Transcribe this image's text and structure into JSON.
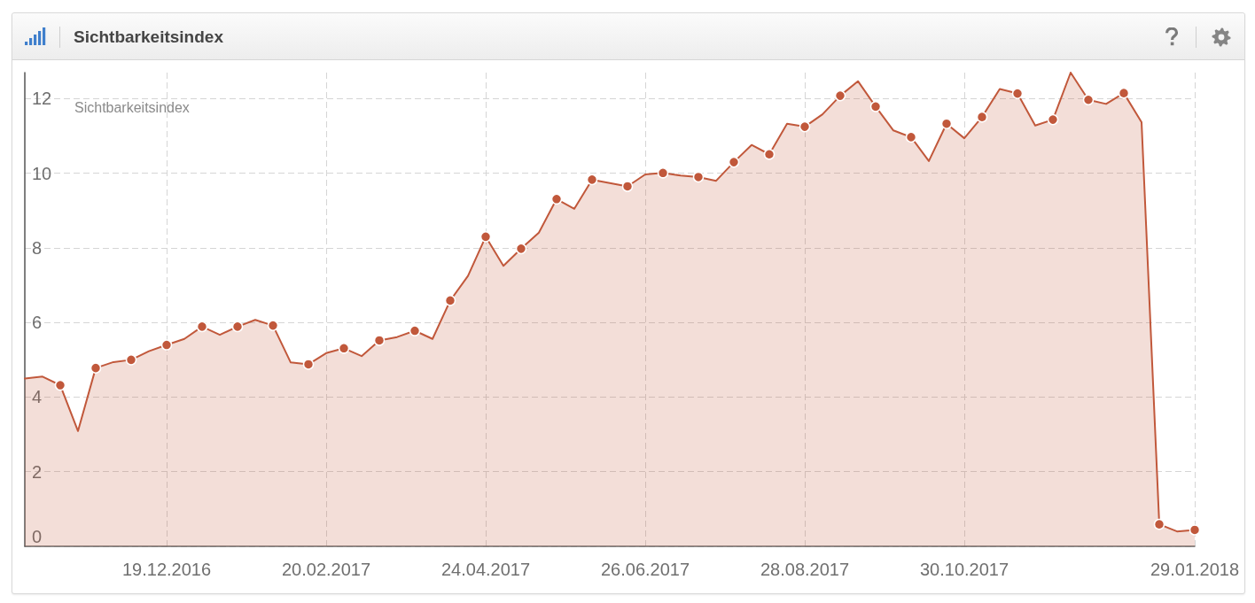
{
  "chart_data": {
    "type": "area",
    "title": "Sichtbarkeitsindex",
    "annotations": [
      "Sichtbarkeitsindex"
    ],
    "x": [
      "2016-10-24",
      "2016-10-31",
      "2016-11-07",
      "2016-11-14",
      "2016-11-21",
      "2016-11-28",
      "2016-12-05",
      "2016-12-12",
      "2016-12-19",
      "2016-12-26",
      "2017-01-02",
      "2017-01-09",
      "2017-01-16",
      "2017-01-23",
      "2017-01-30",
      "2017-02-06",
      "2017-02-13",
      "2017-02-20",
      "2017-02-27",
      "2017-03-06",
      "2017-03-13",
      "2017-03-20",
      "2017-03-27",
      "2017-04-03",
      "2017-04-10",
      "2017-04-17",
      "2017-04-24",
      "2017-05-01",
      "2017-05-08",
      "2017-05-15",
      "2017-05-22",
      "2017-05-29",
      "2017-06-05",
      "2017-06-12",
      "2017-06-19",
      "2017-06-26",
      "2017-07-03",
      "2017-07-10",
      "2017-07-17",
      "2017-07-24",
      "2017-07-31",
      "2017-08-07",
      "2017-08-14",
      "2017-08-21",
      "2017-08-28",
      "2017-09-04",
      "2017-09-11",
      "2017-09-18",
      "2017-09-25",
      "2017-10-02",
      "2017-10-09",
      "2017-10-16",
      "2017-10-23",
      "2017-10-30",
      "2017-11-06",
      "2017-11-13",
      "2017-11-20",
      "2017-11-27",
      "2017-12-04",
      "2017-12-11",
      "2017-12-18",
      "2017-12-25",
      "2018-01-01",
      "2018-01-08",
      "2018-01-15",
      "2018-01-22",
      "2018-01-29"
    ],
    "series": [
      {
        "color": "#c1583b",
        "marker": "none",
        "values": [
          4.5,
          4.55,
          4.32,
          3.09,
          4.78,
          4.94,
          5.0,
          5.23,
          5.4,
          5.56,
          5.89,
          5.67,
          5.89,
          6.07,
          5.92,
          4.93,
          4.88,
          5.18,
          5.31,
          5.1,
          5.52,
          5.61,
          5.78,
          5.56,
          6.59,
          7.25,
          8.3,
          7.52,
          7.98,
          8.41,
          9.31,
          9.05,
          9.83,
          9.74,
          9.65,
          9.97,
          10.01,
          9.94,
          9.9,
          9.8,
          10.3,
          10.76,
          10.51,
          11.33,
          11.25,
          11.58,
          12.08,
          12.47,
          11.79,
          11.15,
          10.97,
          10.33,
          11.33,
          10.94,
          11.51,
          12.26,
          12.14,
          11.28,
          11.44,
          12.7,
          11.97,
          11.86,
          12.15,
          11.37,
          0.59,
          0.4,
          0.44
        ]
      },
      {
        "type": "scatter",
        "color": "#c1583b",
        "marker": "circle",
        "x": [
          "2016-11-07",
          "2016-11-21",
          "2016-12-05",
          "2016-12-19",
          "2017-01-02",
          "2017-01-16",
          "2017-01-30",
          "2017-02-13",
          "2017-02-27",
          "2017-03-13",
          "2017-03-27",
          "2017-04-10",
          "2017-04-24",
          "2017-05-08",
          "2017-05-22",
          "2017-06-05",
          "2017-06-19",
          "2017-07-03",
          "2017-07-17",
          "2017-07-31",
          "2017-08-14",
          "2017-08-28",
          "2017-09-11",
          "2017-09-25",
          "2017-10-09",
          "2017-10-23",
          "2017-11-06",
          "2017-11-20",
          "2017-12-04",
          "2017-12-18",
          "2018-01-01",
          "2018-01-15",
          "2018-01-29"
        ],
        "values": [
          4.32,
          4.78,
          5.0,
          5.4,
          5.89,
          5.89,
          5.92,
          4.88,
          5.31,
          5.52,
          5.78,
          6.59,
          8.3,
          7.98,
          9.31,
          9.83,
          9.65,
          10.01,
          9.9,
          10.3,
          10.51,
          11.25,
          12.08,
          11.79,
          10.97,
          11.33,
          11.51,
          12.14,
          11.44,
          11.97,
          12.15,
          0.59,
          0.44
        ]
      }
    ],
    "xlim": [
      "2016-10-24",
      "2018-01-29"
    ],
    "xticks": [
      {
        "value": "2016-12-19",
        "label": "19.12.2016"
      },
      {
        "value": "2017-02-20",
        "label": "20.02.2017"
      },
      {
        "value": "2017-04-24",
        "label": "24.04.2017"
      },
      {
        "value": "2017-06-26",
        "label": "26.06.2017"
      },
      {
        "value": "2017-08-28",
        "label": "28.08.2017"
      },
      {
        "value": "2017-10-30",
        "label": "30.10.2017"
      },
      {
        "value": "2018-01-29",
        "label": "29.01.2018"
      }
    ],
    "ylim": [
      0,
      12.7
    ],
    "yticks": [
      0,
      2,
      4,
      6,
      8,
      10,
      12
    ],
    "grid": true
  }
}
